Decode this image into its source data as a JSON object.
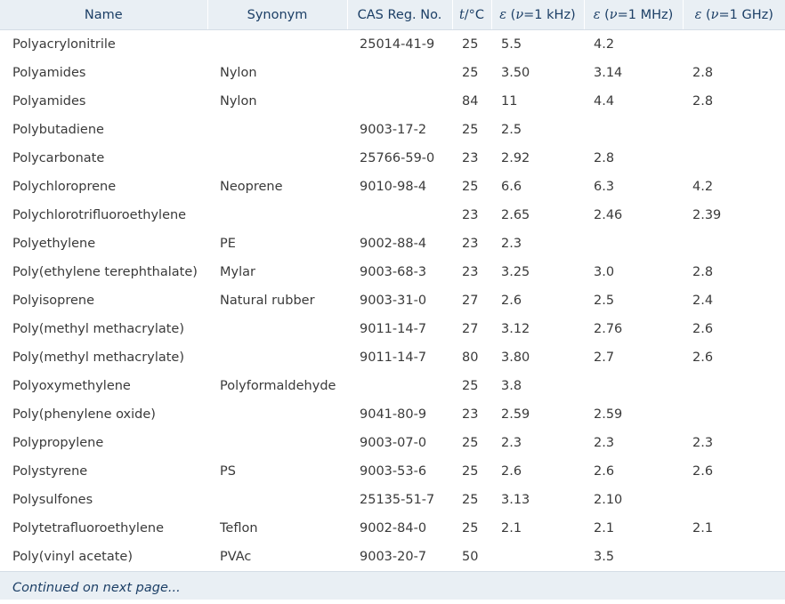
{
  "table": {
    "headers": {
      "name": "Name",
      "synonym": "Synonym",
      "cas": "CAS Reg. No.",
      "t_var": "t",
      "t_unit": "/°C",
      "eps1_var": "ε",
      "eps1_open": " (",
      "eps1_nu": "ν",
      "eps1_tail": "=1 kHz)",
      "eps2_var": "ε",
      "eps2_open": " (",
      "eps2_nu": "ν",
      "eps2_tail": "=1 MHz)",
      "eps3_var": "ε",
      "eps3_open": " (",
      "eps3_nu": "ν",
      "eps3_tail": "=1 GHz)"
    },
    "rows": [
      {
        "name": "Polyacrylonitrile",
        "synonym": "",
        "cas": "25014-41-9",
        "t": "25",
        "e_khz": "5.5",
        "e_mhz": "4.2",
        "e_ghz": ""
      },
      {
        "name": "Polyamides",
        "synonym": "Nylon",
        "cas": "",
        "t": "25",
        "e_khz": "3.50",
        "e_mhz": "3.14",
        "e_ghz": "2.8"
      },
      {
        "name": "Polyamides",
        "synonym": "Nylon",
        "cas": "",
        "t": "84",
        "e_khz": "11",
        "e_mhz": "4.4",
        "e_ghz": "2.8"
      },
      {
        "name": "Polybutadiene",
        "synonym": "",
        "cas": "9003-17-2",
        "t": "25",
        "e_khz": "2.5",
        "e_mhz": "",
        "e_ghz": ""
      },
      {
        "name": "Polycarbonate",
        "synonym": "",
        "cas": "25766-59-0",
        "t": "23",
        "e_khz": "2.92",
        "e_mhz": "2.8",
        "e_ghz": ""
      },
      {
        "name": "Polychloroprene",
        "synonym": "Neoprene",
        "cas": "9010-98-4",
        "t": "25",
        "e_khz": "6.6",
        "e_mhz": "6.3",
        "e_ghz": "4.2"
      },
      {
        "name": "Polychlorotrifluoroethylene",
        "synonym": "",
        "cas": "",
        "t": "23",
        "e_khz": "2.65",
        "e_mhz": "2.46",
        "e_ghz": "2.39"
      },
      {
        "name": "Polyethylene",
        "synonym": "PE",
        "cas": "9002-88-4",
        "t": "23",
        "e_khz": "2.3",
        "e_mhz": "",
        "e_ghz": ""
      },
      {
        "name": "Poly(ethylene terephthalate)",
        "synonym": "Mylar",
        "cas": "9003-68-3",
        "t": "23",
        "e_khz": "3.25",
        "e_mhz": "3.0",
        "e_ghz": "2.8"
      },
      {
        "name": "Polyisoprene",
        "synonym": "Natural rubber",
        "cas": "9003-31-0",
        "t": "27",
        "e_khz": "2.6",
        "e_mhz": "2.5",
        "e_ghz": "2.4"
      },
      {
        "name": "Poly(methyl methacrylate)",
        "synonym": "",
        "cas": "9011-14-7",
        "t": "27",
        "e_khz": "3.12",
        "e_mhz": "2.76",
        "e_ghz": "2.6"
      },
      {
        "name": "Poly(methyl methacrylate)",
        "synonym": "",
        "cas": "9011-14-7",
        "t": "80",
        "e_khz": "3.80",
        "e_mhz": "2.7",
        "e_ghz": "2.6"
      },
      {
        "name": "Polyoxymethylene",
        "synonym": "Polyformaldehyde",
        "cas": "",
        "t": "25",
        "e_khz": "3.8",
        "e_mhz": "",
        "e_ghz": ""
      },
      {
        "name": "Poly(phenylene oxide)",
        "synonym": "",
        "cas": "9041-80-9",
        "t": "23",
        "e_khz": "2.59",
        "e_mhz": "2.59",
        "e_ghz": ""
      },
      {
        "name": "Polypropylene",
        "synonym": "",
        "cas": "9003-07-0",
        "t": "25",
        "e_khz": "2.3",
        "e_mhz": "2.3",
        "e_ghz": "2.3"
      },
      {
        "name": "Polystyrene",
        "synonym": "PS",
        "cas": "9003-53-6",
        "t": "25",
        "e_khz": "2.6",
        "e_mhz": "2.6",
        "e_ghz": "2.6"
      },
      {
        "name": "Polysulfones",
        "synonym": "",
        "cas": "25135-51-7",
        "t": "25",
        "e_khz": "3.13",
        "e_mhz": "2.10",
        "e_ghz": ""
      },
      {
        "name": "Polytetrafluoroethylene",
        "synonym": "Teflon",
        "cas": "9002-84-0",
        "t": "25",
        "e_khz": "2.1",
        "e_mhz": "2.1",
        "e_ghz": "2.1"
      },
      {
        "name": "Poly(vinyl acetate)",
        "synonym": "PVAc",
        "cas": "9003-20-7",
        "t": "50",
        "e_khz": "",
        "e_mhz": "3.5",
        "e_ghz": ""
      }
    ]
  },
  "footer": {
    "continued": "Continued on next page..."
  },
  "colors": {
    "header_bg": "#e9eff4",
    "header_text": "#1c3f66",
    "body_text": "#3a3a3a"
  }
}
